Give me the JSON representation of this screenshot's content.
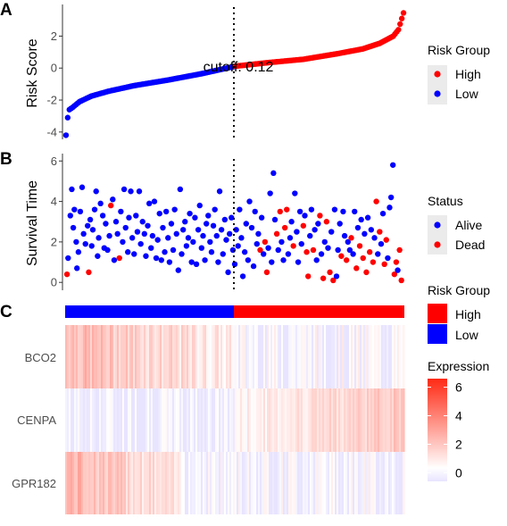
{
  "chart_data": [
    {
      "type": "scatter",
      "panel": "A",
      "ylabel": "Risk Score",
      "ylim": [
        -4.4,
        3.7
      ],
      "yticks": [
        "-4",
        "-2",
        "0",
        "2"
      ],
      "ytick_values": [
        -4,
        -2,
        0,
        2
      ],
      "cutoff_label": "cutoff: 0.12",
      "cutoff_value": 0.12,
      "n_samples": 200,
      "cutoff_index": 100,
      "legend": {
        "title": "Risk Group",
        "entries": [
          {
            "label": "High",
            "color": "#ff0000"
          },
          {
            "label": "Low",
            "color": "#0000ff"
          }
        ]
      },
      "sorted_score_shape": [
        [
          0,
          -4.2
        ],
        [
          1,
          -3.1
        ],
        [
          2,
          -2.6
        ],
        [
          4,
          -2.45
        ],
        [
          8,
          -2.1
        ],
        [
          15,
          -1.75
        ],
        [
          25,
          -1.45
        ],
        [
          40,
          -1.1
        ],
        [
          60,
          -0.75
        ],
        [
          80,
          -0.35
        ],
        [
          100,
          0.12
        ],
        [
          120,
          0.35
        ],
        [
          140,
          0.55
        ],
        [
          160,
          0.9
        ],
        [
          175,
          1.2
        ],
        [
          185,
          1.55
        ],
        [
          193,
          2.0
        ],
        [
          196,
          2.4
        ],
        [
          198,
          3.1
        ],
        [
          199,
          3.45
        ]
      ]
    },
    {
      "type": "scatter",
      "panel": "B",
      "ylabel": "Survival Time",
      "ylim": [
        -0.3,
        6.1
      ],
      "yticks": [
        "0",
        "2",
        "4",
        "6"
      ],
      "ytick_values": [
        0,
        2,
        4,
        6
      ],
      "legend": {
        "title": "Status",
        "entries": [
          {
            "label": "Alive",
            "color": "#0000ff"
          },
          {
            "label": "Dead",
            "color": "#ff0000"
          }
        ]
      },
      "points_approx": [
        [
          0.5,
          0.4,
          "Dead"
        ],
        [
          0.8,
          1.2,
          "Alive"
        ],
        [
          1.4,
          3.3,
          "Alive"
        ],
        [
          1.8,
          4.6,
          "Alive"
        ],
        [
          2.2,
          2.7,
          "Alive"
        ],
        [
          2.5,
          3.6,
          "Alive"
        ],
        [
          3.0,
          2.0,
          "Alive"
        ],
        [
          3.2,
          0.7,
          "Alive"
        ],
        [
          3.6,
          1.5,
          "Alive"
        ],
        [
          4.1,
          3.5,
          "Alive"
        ],
        [
          4.6,
          4.7,
          "Alive"
        ],
        [
          5.0,
          2.4,
          "Alive"
        ],
        [
          5.5,
          1.9,
          "Alive"
        ],
        [
          6.1,
          2.8,
          "Alive"
        ],
        [
          6.4,
          0.5,
          "Dead"
        ],
        [
          6.8,
          3.1,
          "Alive"
        ],
        [
          7.2,
          1.8,
          "Alive"
        ],
        [
          7.5,
          2.6,
          "Alive"
        ],
        [
          8.0,
          3.6,
          "Alive"
        ],
        [
          8.4,
          4.5,
          "Alive"
        ],
        [
          8.8,
          1.3,
          "Alive"
        ],
        [
          9.1,
          2.2,
          "Alive"
        ],
        [
          9.6,
          3.9,
          "Alive"
        ],
        [
          10.2,
          3.3,
          "Alive"
        ],
        [
          10.6,
          1.7,
          "Alive"
        ],
        [
          11.0,
          2.9,
          "Alive"
        ],
        [
          11.5,
          1.6,
          "Alive"
        ],
        [
          12.0,
          2.3,
          "Alive"
        ],
        [
          12.4,
          3.8,
          "Dead"
        ],
        [
          12.9,
          4.1,
          "Alive"
        ],
        [
          13.3,
          1.1,
          "Alive"
        ],
        [
          13.8,
          3.0,
          "Alive"
        ],
        [
          14.2,
          2.4,
          "Alive"
        ],
        [
          14.7,
          1.2,
          "Dead"
        ],
        [
          15.1,
          3.5,
          "Alive"
        ],
        [
          15.6,
          2.0,
          "Alive"
        ],
        [
          16.0,
          4.6,
          "Alive"
        ],
        [
          16.4,
          2.7,
          "Alive"
        ],
        [
          17.0,
          1.5,
          "Alive"
        ],
        [
          17.3,
          3.2,
          "Alive"
        ],
        [
          17.8,
          4.5,
          "Alive"
        ],
        [
          18.2,
          2.2,
          "Alive"
        ],
        [
          18.7,
          1.4,
          "Alive"
        ],
        [
          19.2,
          3.3,
          "Alive"
        ],
        [
          19.6,
          2.5,
          "Alive"
        ],
        [
          20.1,
          4.5,
          "Alive"
        ],
        [
          20.5,
          1.9,
          "Alive"
        ],
        [
          21.0,
          3.0,
          "Alive"
        ],
        [
          21.5,
          2.4,
          "Alive"
        ],
        [
          21.9,
          1.3,
          "Alive"
        ],
        [
          22.4,
          2.8,
          "Alive"
        ],
        [
          22.8,
          3.9,
          "Alive"
        ],
        [
          23.3,
          1.7,
          "Alive"
        ],
        [
          23.7,
          2.3,
          "Alive"
        ],
        [
          24.2,
          4.0,
          "Alive"
        ],
        [
          24.7,
          1.2,
          "Alive"
        ],
        [
          25.1,
          2.1,
          "Alive"
        ],
        [
          25.6,
          3.4,
          "Alive"
        ],
        [
          26.1,
          1.1,
          "Alive"
        ],
        [
          26.5,
          2.7,
          "Alive"
        ],
        [
          27.0,
          1.5,
          "Alive"
        ],
        [
          27.4,
          3.5,
          "Alive"
        ],
        [
          27.9,
          2.2,
          "Alive"
        ],
        [
          28.3,
          1.0,
          "Alive"
        ],
        [
          28.8,
          2.9,
          "Alive"
        ],
        [
          29.3,
          1.6,
          "Alive"
        ],
        [
          29.7,
          3.6,
          "Alive"
        ],
        [
          30.2,
          2.4,
          "Alive"
        ],
        [
          30.7,
          0.6,
          "Alive"
        ],
        [
          31.2,
          4.6,
          "Alive"
        ],
        [
          31.6,
          1.4,
          "Alive"
        ],
        [
          32.0,
          2.6,
          "Alive"
        ],
        [
          32.5,
          3.0,
          "Alive"
        ],
        [
          32.9,
          1.8,
          "Alive"
        ],
        [
          33.4,
          2.2,
          "Alive"
        ],
        [
          33.8,
          3.4,
          "Alive"
        ],
        [
          34.3,
          1.0,
          "Alive"
        ],
        [
          34.7,
          2.0,
          "Alive"
        ],
        [
          35.2,
          3.2,
          "Alive"
        ],
        [
          35.6,
          0.9,
          "Alive"
        ],
        [
          36.1,
          2.6,
          "Alive"
        ],
        [
          36.5,
          3.8,
          "Alive"
        ],
        [
          37.0,
          1.7,
          "Alive"
        ],
        [
          37.4,
          2.3,
          "Alive"
        ],
        [
          37.9,
          1.1,
          "Alive"
        ],
        [
          38.3,
          2.9,
          "Alive"
        ],
        [
          38.8,
          3.3,
          "Alive"
        ],
        [
          39.3,
          2.0,
          "Alive"
        ],
        [
          39.7,
          1.5,
          "Alive"
        ],
        [
          40.2,
          2.8,
          "Alive"
        ],
        [
          40.6,
          3.6,
          "Alive"
        ],
        [
          41.1,
          2.3,
          "Alive"
        ],
        [
          41.5,
          1.0,
          "Alive"
        ],
        [
          41.9,
          4.5,
          "Alive"
        ],
        [
          42.4,
          2.6,
          "Alive"
        ],
        [
          42.8,
          1.4,
          "Alive"
        ],
        [
          43.3,
          3.1,
          "Alive"
        ],
        [
          43.7,
          2.1,
          "Alive"
        ],
        [
          44.2,
          0.5,
          "Alive"
        ],
        [
          44.6,
          2.4,
          "Alive"
        ],
        [
          45.1,
          3.2,
          "Alive"
        ],
        [
          45.5,
          1.6,
          "Alive"
        ],
        [
          46.0,
          0.9,
          "Alive"
        ],
        [
          46.4,
          2.6,
          "Alive"
        ],
        [
          46.9,
          1.8,
          "Alive"
        ],
        [
          47.3,
          3.6,
          "Alive"
        ],
        [
          47.8,
          2.2,
          "Alive"
        ],
        [
          48.2,
          0.3,
          "Alive"
        ],
        [
          48.7,
          1.5,
          "Alive"
        ],
        [
          49.1,
          2.9,
          "Alive"
        ],
        [
          49.6,
          1.1,
          "Alive"
        ],
        [
          50.0,
          4.0,
          "Alive"
        ],
        [
          50.6,
          2.7,
          "Alive"
        ],
        [
          51.1,
          0.8,
          "Alive"
        ],
        [
          51.5,
          3.5,
          "Alive"
        ],
        [
          52.0,
          1.9,
          "Alive"
        ],
        [
          52.4,
          2.4,
          "Alive"
        ],
        [
          52.9,
          1.6,
          "Dead"
        ],
        [
          53.3,
          3.2,
          "Alive"
        ],
        [
          53.8,
          1.4,
          "Alive"
        ],
        [
          54.2,
          2.0,
          "Dead"
        ],
        [
          54.7,
          0.5,
          "Dead"
        ],
        [
          55.1,
          1.7,
          "Alive"
        ],
        [
          55.6,
          4.4,
          "Alive"
        ],
        [
          56.0,
          1.0,
          "Alive"
        ],
        [
          56.5,
          5.4,
          "Alive"
        ],
        [
          56.9,
          3.1,
          "Alive"
        ],
        [
          57.4,
          2.4,
          "Dead"
        ],
        [
          57.8,
          1.6,
          "Alive"
        ],
        [
          58.3,
          3.5,
          "Dead"
        ],
        [
          58.7,
          2.0,
          "Alive"
        ],
        [
          59.2,
          1.1,
          "Alive"
        ],
        [
          59.6,
          2.7,
          "Dead"
        ],
        [
          60.1,
          3.6,
          "Dead"
        ],
        [
          60.5,
          1.4,
          "Alive"
        ],
        [
          61.0,
          2.2,
          "Alive"
        ],
        [
          61.4,
          3.0,
          "Alive"
        ],
        [
          61.9,
          1.8,
          "Dead"
        ],
        [
          62.3,
          4.4,
          "Alive"
        ],
        [
          62.8,
          2.5,
          "Alive"
        ],
        [
          63.2,
          1.0,
          "Alive"
        ],
        [
          63.7,
          3.5,
          "Alive"
        ],
        [
          64.1,
          1.9,
          "Alive"
        ],
        [
          64.6,
          2.8,
          "Dead"
        ],
        [
          65.0,
          3.3,
          "Alive"
        ],
        [
          65.5,
          1.5,
          "Dead"
        ],
        [
          65.9,
          0.3,
          "Dead"
        ],
        [
          66.4,
          2.3,
          "Alive"
        ],
        [
          66.8,
          3.6,
          "Alive"
        ],
        [
          67.3,
          1.6,
          "Dead"
        ],
        [
          67.7,
          2.6,
          "Alive"
        ],
        [
          68.2,
          1.1,
          "Alive"
        ],
        [
          68.6,
          2.9,
          "Alive"
        ],
        [
          69.1,
          3.3,
          "Dead"
        ],
        [
          69.5,
          1.4,
          "Alive"
        ],
        [
          70.0,
          0.2,
          "Dead"
        ],
        [
          70.4,
          2.0,
          "Alive"
        ],
        [
          70.9,
          3.0,
          "Dead"
        ],
        [
          71.3,
          1.7,
          "Alive"
        ],
        [
          71.8,
          0.5,
          "Dead"
        ],
        [
          72.2,
          2.5,
          "Alive"
        ],
        [
          72.7,
          0.1,
          "Dead"
        ],
        [
          73.1,
          3.6,
          "Alive"
        ],
        [
          73.6,
          0.3,
          "Alive"
        ],
        [
          74.0,
          1.6,
          "Alive"
        ],
        [
          74.5,
          2.9,
          "Alive"
        ],
        [
          74.9,
          1.3,
          "Dead"
        ],
        [
          75.4,
          3.5,
          "Alive"
        ],
        [
          75.8,
          2.3,
          "Alive"
        ],
        [
          76.3,
          1.1,
          "Dead"
        ],
        [
          76.7,
          2.0,
          "Alive"
        ],
        [
          77.2,
          1.6,
          "Alive"
        ],
        [
          77.6,
          2.2,
          "Dead"
        ],
        [
          78.1,
          1.4,
          "Alive"
        ],
        [
          78.5,
          3.5,
          "Alive"
        ],
        [
          79.0,
          0.7,
          "Dead"
        ],
        [
          79.4,
          2.7,
          "Alive"
        ],
        [
          79.9,
          1.8,
          "Dead"
        ],
        [
          80.3,
          3.1,
          "Alive"
        ],
        [
          80.8,
          1.2,
          "Dead"
        ],
        [
          81.2,
          2.4,
          "Alive"
        ],
        [
          81.7,
          0.5,
          "Dead"
        ],
        [
          82.1,
          3.2,
          "Alive"
        ],
        [
          82.6,
          1.5,
          "Dead"
        ],
        [
          83.0,
          2.6,
          "Alive"
        ],
        [
          83.5,
          1.0,
          "Dead"
        ],
        [
          83.9,
          2.2,
          "Alive"
        ],
        [
          84.4,
          4.0,
          "Dead"
        ],
        [
          84.8,
          1.4,
          "Alive"
        ],
        [
          85.3,
          2.5,
          "Dead"
        ],
        [
          85.7,
          1.9,
          "Alive"
        ],
        [
          86.2,
          3.4,
          "Alive"
        ],
        [
          86.6,
          0.9,
          "Dead"
        ],
        [
          87.1,
          2.1,
          "Dead"
        ],
        [
          87.5,
          1.2,
          "Alive"
        ],
        [
          88.0,
          3.7,
          "Alive"
        ],
        [
          88.4,
          4.2,
          "Alive"
        ],
        [
          88.9,
          5.8,
          "Alive"
        ],
        [
          89.3,
          0.4,
          "Dead"
        ],
        [
          89.8,
          1.0,
          "Dead"
        ],
        [
          90.2,
          0.6,
          "Alive"
        ],
        [
          90.7,
          1.6,
          "Dead"
        ],
        [
          91.2,
          0.1,
          "Dead"
        ]
      ]
    },
    {
      "type": "heatmap",
      "panel": "C",
      "rows": [
        "BCO2",
        "CENPA",
        "GPR182"
      ],
      "annotation": {
        "title": "Risk Group",
        "entries": [
          {
            "label": "High",
            "color": "#ff0000"
          },
          {
            "label": "Low",
            "color": "#0000ff"
          }
        ],
        "split_fraction": 0.5
      },
      "colorbar": {
        "title": "Expression",
        "ticks": [
          "0",
          "2",
          "4",
          "6"
        ],
        "tick_values": [
          0,
          2,
          4,
          6
        ],
        "min": -0.6,
        "max": 6.6,
        "colors": [
          "#e8e4ff",
          "#ffffff",
          "#ff2a14"
        ]
      },
      "row_trends": {
        "BCO2": "high on low-risk (left) side, fading toward right",
        "CENPA": "low on left, higher on high-risk (right) side",
        "GPR182": "high on far left, fading toward right"
      }
    }
  ],
  "panels": {
    "A": {
      "letter": "A"
    },
    "B": {
      "letter": "B"
    },
    "C": {
      "letter": "C"
    }
  },
  "colors": {
    "high": "#ff0000",
    "low": "#0000ff",
    "alive": "#0000ff",
    "dead": "#ff0000"
  }
}
